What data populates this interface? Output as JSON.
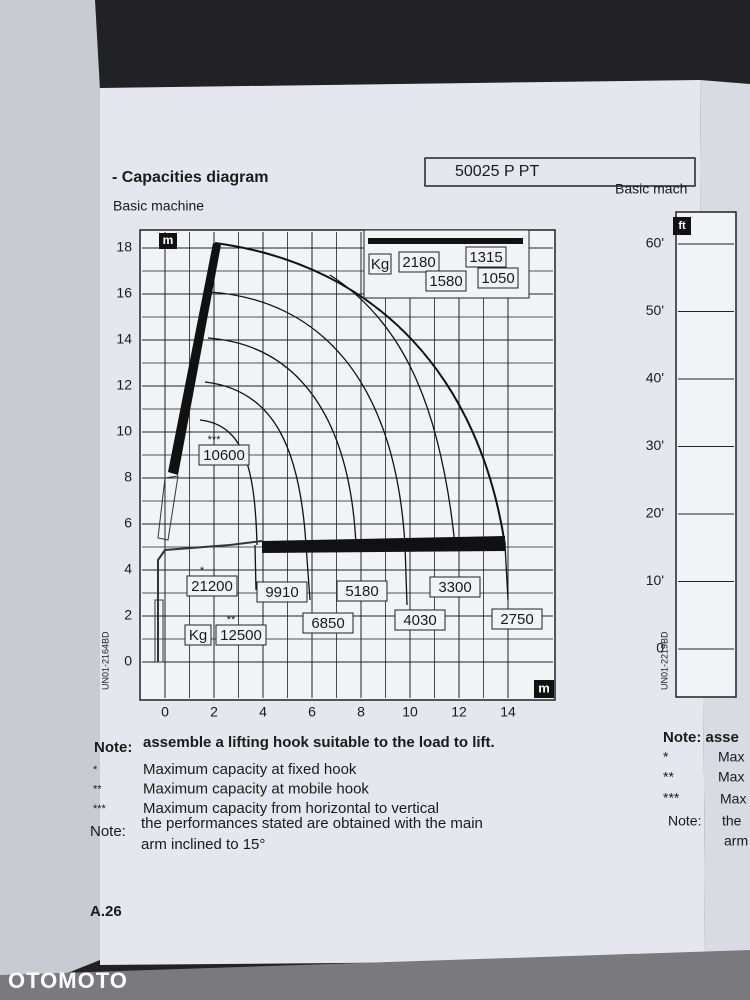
{
  "header": {
    "title": "- Capacities diagram",
    "model": "50025 P PT",
    "subtitle": "Basic machine"
  },
  "diagram": {
    "unit_y": "m",
    "unit_x": "m",
    "y_ticks": [
      18,
      16,
      14,
      12,
      10,
      8,
      6,
      4,
      2,
      0
    ],
    "x_ticks": [
      0,
      2,
      4,
      6,
      8,
      10,
      12,
      14
    ],
    "code": "UN01-2164BD",
    "legend": {
      "unit": "Kg",
      "values": [
        2180,
        1315,
        1580,
        1050
      ]
    },
    "loads": [
      {
        "marker": "***",
        "value": 10600
      },
      {
        "marker": "*",
        "value": 21200
      },
      {
        "marker": "**",
        "unit": "Kg",
        "value": 12500
      },
      {
        "value": 9910
      },
      {
        "value": 6850
      },
      {
        "value": 5180
      },
      {
        "value": 4030
      },
      {
        "value": 3300
      },
      {
        "value": 2750
      }
    ]
  },
  "notes": {
    "heading": "Note:",
    "text": "assemble a lifting hook suitable to the load to lift.",
    "items": [
      {
        "marker": "*",
        "text": "Maximum capacity at fixed hook"
      },
      {
        "marker": "**",
        "text": "Maximum capacity at mobile hook"
      },
      {
        "marker": "***",
        "text": "Maximum capacity from horizontal to vertical"
      }
    ],
    "final_heading": "Note:",
    "final_lines": [
      "the performances stated are obtained with the main",
      "arm inclined to 15°"
    ]
  },
  "page": "A.26",
  "right_page": {
    "subtitle": "Basic mach",
    "unit": "ft",
    "ticks": [
      "60'",
      "50'",
      "40'",
      "30'",
      "20'",
      "10'",
      "0"
    ],
    "code": "UN01-2219BD",
    "notes": [
      "Note: asse",
      "*",
      "Max",
      "**",
      "Max",
      "***",
      "Max",
      "Note:",
      "the",
      "arm"
    ]
  },
  "watermark": "OTOMOTO"
}
